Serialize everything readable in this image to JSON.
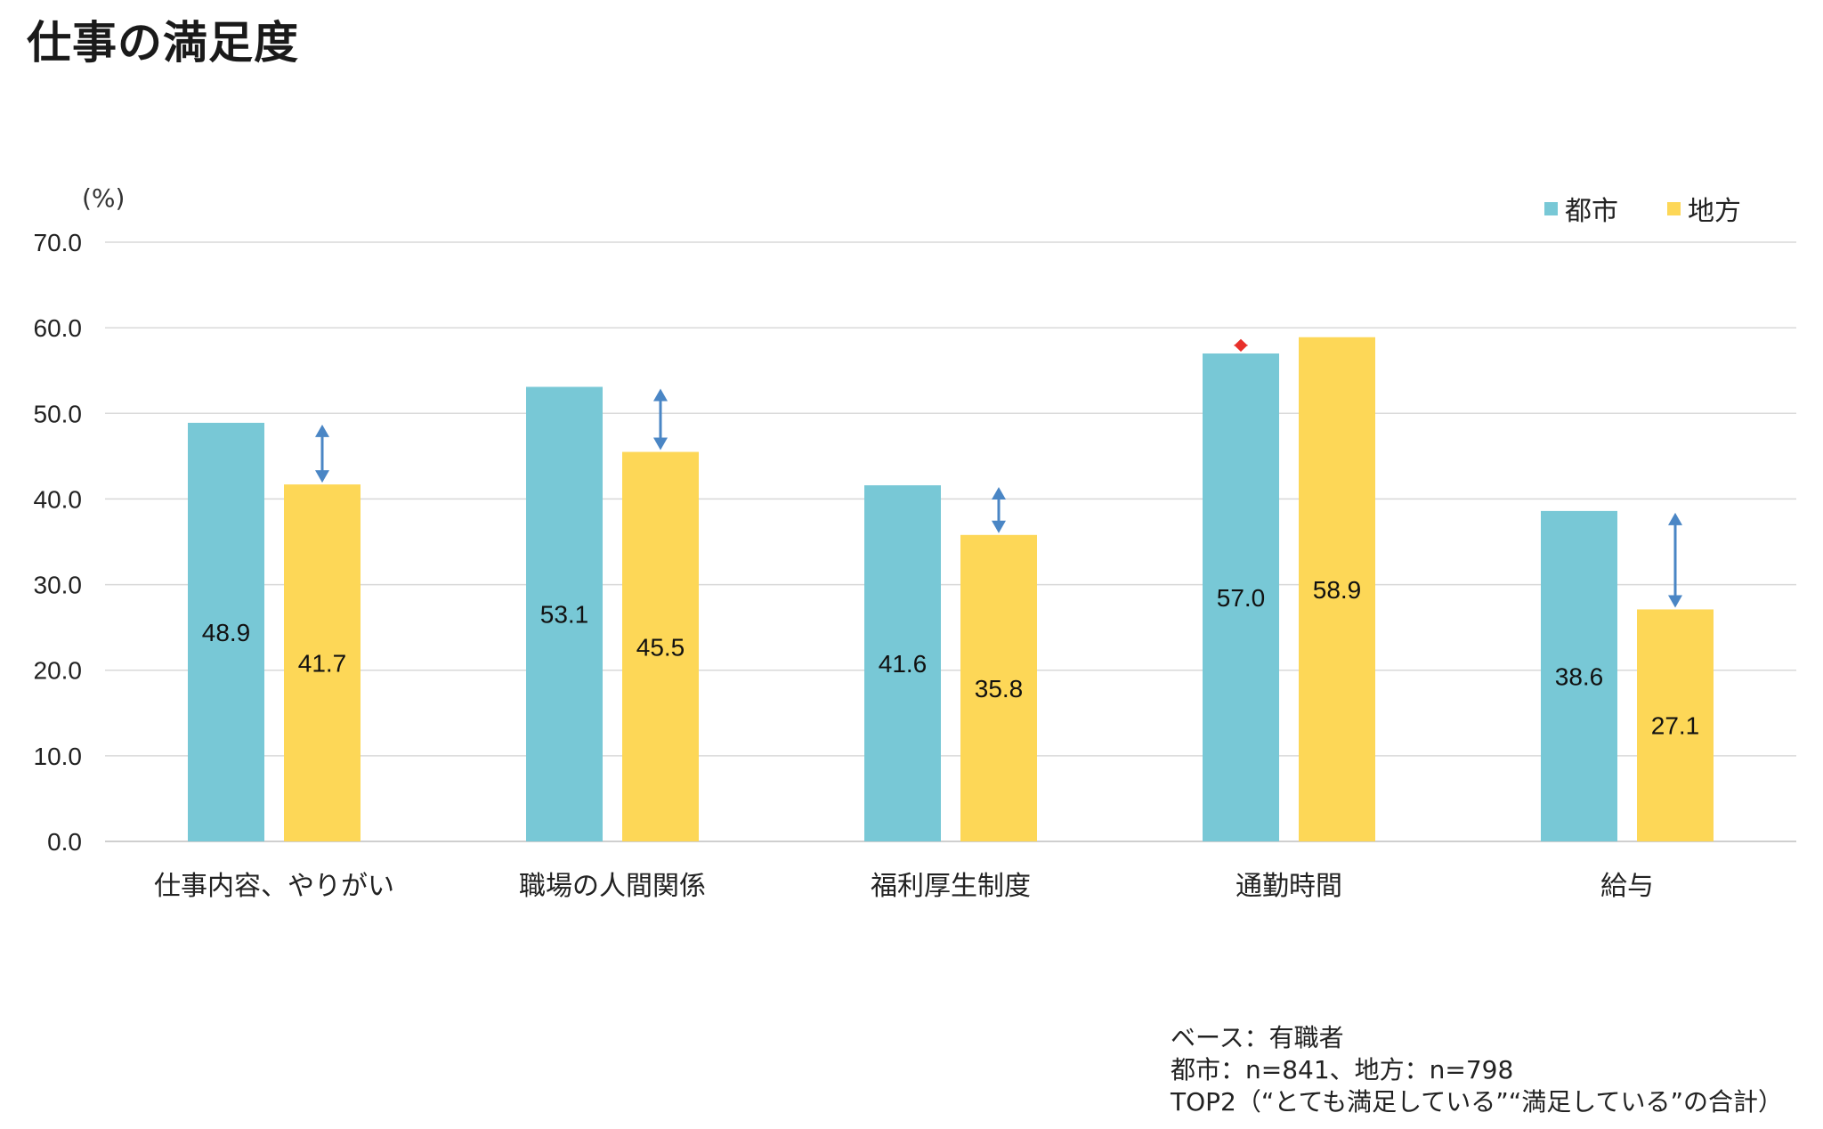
{
  "title": "仕事の満足度",
  "colors": {
    "urban": "#78C8D6",
    "local": "#FDD757",
    "arrow": "#4A86C5",
    "arrow_alert": "#E8302A",
    "grid": "#D9D9D9"
  },
  "chart_data": {
    "type": "bar",
    "unit_label": "(%)",
    "categories": [
      "仕事内容、やりがい",
      "職場の人間関係",
      "福利厚生制度",
      "通勤時間",
      "給与"
    ],
    "series": [
      {
        "name": "都市",
        "values": [
          48.9,
          53.1,
          41.6,
          57.0,
          38.6
        ]
      },
      {
        "name": "地方",
        "values": [
          41.7,
          45.5,
          35.8,
          58.9,
          27.1
        ]
      }
    ],
    "value_labels": [
      [
        "48.9",
        "53.1",
        "41.6",
        "57.0",
        "38.6"
      ],
      [
        "41.7",
        "45.5",
        "35.8",
        "58.9",
        "27.1"
      ]
    ],
    "ylim": [
      0,
      70
    ],
    "yticks": [
      "0.0",
      "10.0",
      "20.0",
      "30.0",
      "40.0",
      "50.0",
      "60.0",
      "70.0"
    ],
    "grid": true,
    "legend_position": "top-right",
    "diff_arrow_alert": [
      false,
      false,
      false,
      true,
      false
    ]
  },
  "notes": [
    "ベース：有職者",
    "都市：n=841、地方：n=798",
    "TOP2（“とても満足している”“満足している”の合計）"
  ]
}
